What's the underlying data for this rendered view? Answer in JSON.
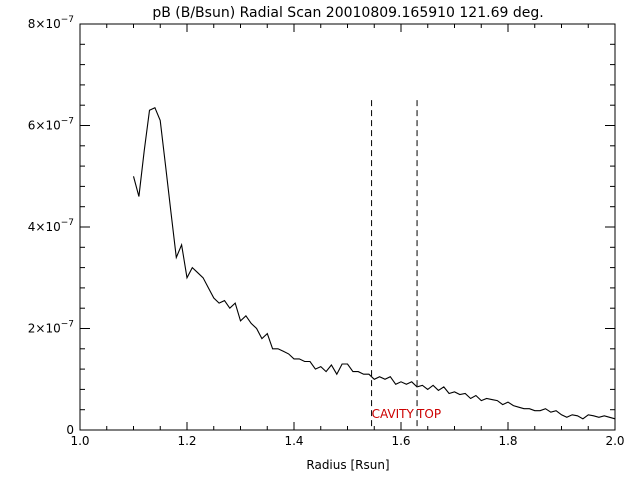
{
  "chart_data": {
    "type": "line",
    "title": "pB (B/Bsun) Radial Scan 20010809.165910 121.69 deg.",
    "xlabel": "Radius [Rsun]",
    "ylabel": "",
    "xlim": [
      1.0,
      2.0
    ],
    "ylim": [
      0,
      8e-07
    ],
    "grid": false,
    "x_ticks": [
      {
        "value": 1.0,
        "label": "1.0"
      },
      {
        "value": 1.2,
        "label": "1.2"
      },
      {
        "value": 1.4,
        "label": "1.4"
      },
      {
        "value": 1.6,
        "label": "1.6"
      },
      {
        "value": 1.8,
        "label": "1.8"
      },
      {
        "value": 2.0,
        "label": "2.0"
      }
    ],
    "y_ticks": [
      {
        "value": 0,
        "label": "0",
        "exp": ""
      },
      {
        "value": 2e-07,
        "label": "2×10",
        "exp": "−7"
      },
      {
        "value": 4e-07,
        "label": "4×10",
        "exp": "−7"
      },
      {
        "value": 6e-07,
        "label": "6×10",
        "exp": "−7"
      },
      {
        "value": 8e-07,
        "label": "8×10",
        "exp": "−7"
      }
    ],
    "series": [
      {
        "color": "#000000",
        "x": [
          1.1,
          1.11,
          1.12,
          1.13,
          1.14,
          1.15,
          1.16,
          1.17,
          1.18,
          1.19,
          1.2,
          1.21,
          1.22,
          1.23,
          1.24,
          1.25,
          1.26,
          1.27,
          1.28,
          1.29,
          1.3,
          1.31,
          1.32,
          1.33,
          1.34,
          1.35,
          1.36,
          1.37,
          1.38,
          1.39,
          1.4,
          1.41,
          1.42,
          1.43,
          1.44,
          1.45,
          1.46,
          1.47,
          1.48,
          1.49,
          1.5,
          1.51,
          1.52,
          1.53,
          1.54,
          1.55,
          1.56,
          1.57,
          1.58,
          1.59,
          1.6,
          1.61,
          1.62,
          1.63,
          1.64,
          1.65,
          1.66,
          1.67,
          1.68,
          1.69,
          1.7,
          1.71,
          1.72,
          1.73,
          1.74,
          1.75,
          1.76,
          1.77,
          1.78,
          1.79,
          1.8,
          1.81,
          1.82,
          1.83,
          1.84,
          1.85,
          1.86,
          1.87,
          1.88,
          1.89,
          1.9,
          1.91,
          1.92,
          1.93,
          1.94,
          1.95,
          1.96,
          1.97,
          1.98,
          1.99,
          2.0
        ],
        "values": [
          5e-07,
          4.6e-07,
          5.5e-07,
          6.3e-07,
          6.35e-07,
          6.1e-07,
          5.2e-07,
          4.3e-07,
          3.4e-07,
          3.65e-07,
          3e-07,
          3.2e-07,
          3.1e-07,
          3e-07,
          2.8e-07,
          2.6e-07,
          2.5e-07,
          2.55e-07,
          2.4e-07,
          2.5e-07,
          2.15e-07,
          2.25e-07,
          2.1e-07,
          2e-07,
          1.8e-07,
          1.9e-07,
          1.6e-07,
          1.6e-07,
          1.55e-07,
          1.5e-07,
          1.4e-07,
          1.4e-07,
          1.35e-07,
          1.35e-07,
          1.2e-07,
          1.25e-07,
          1.15e-07,
          1.28e-07,
          1.1e-07,
          1.3e-07,
          1.3e-07,
          1.15e-07,
          1.15e-07,
          1.1e-07,
          1.1e-07,
          1e-07,
          1.05e-07,
          1e-07,
          1.05e-07,
          9e-08,
          9.5e-08,
          9e-08,
          9.5e-08,
          8.5e-08,
          8.8e-08,
          8e-08,
          8.8e-08,
          7.8e-08,
          8.5e-08,
          7.2e-08,
          7.5e-08,
          7e-08,
          7.2e-08,
          6.2e-08,
          6.8e-08,
          5.8e-08,
          6.2e-08,
          6e-08,
          5.8e-08,
          5e-08,
          5.5e-08,
          4.8e-08,
          4.5e-08,
          4.2e-08,
          4.2e-08,
          3.8e-08,
          3.8e-08,
          4.2e-08,
          3.5e-08,
          3.8e-08,
          3e-08,
          2.5e-08,
          3e-08,
          2.8e-08,
          2.2e-08,
          3e-08,
          2.8e-08,
          2.5e-08,
          2.8e-08,
          2.5e-08,
          2.2e-08
        ]
      }
    ],
    "markers": [
      {
        "x": 1.545,
        "y_top": 6.5e-07,
        "label": "CAVITY",
        "color": "#cc0000"
      },
      {
        "x": 1.63,
        "y_top": 6.5e-07,
        "label": "TOP",
        "color": "#cc0000"
      }
    ]
  }
}
